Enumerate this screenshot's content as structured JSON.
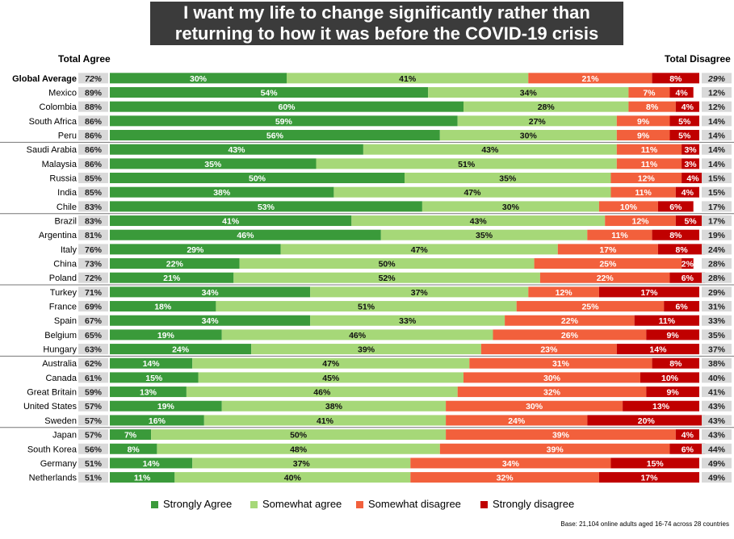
{
  "title_lines": [
    "I want my life to change significantly rather than",
    "returning to how it was before the COVID-19 crisis"
  ],
  "headers": {
    "left": "Total Agree",
    "right": "Total Disagree"
  },
  "base_note": "Base: 21,104  online adults aged 16-74 across 28 countries",
  "colors": {
    "strongly_agree": "#3a9a3a",
    "somewhat_agree": "#a6d878",
    "somewhat_disagree": "#f2603c",
    "strongly_disagree": "#c00000",
    "total_cell": "#d9d9d9",
    "separator": "#777777"
  },
  "chart_data": {
    "type": "bar",
    "orientation": "horizontal",
    "stacked": true,
    "title": "I want my life to change significantly rather than returning to how it was before the COVID-19 crisis",
    "categories": [
      "Global Average",
      "Mexico",
      "Colombia",
      "South Africa",
      "Peru",
      "Saudi Arabia",
      "Malaysia",
      "Russia",
      "India",
      "Chile",
      "Brazil",
      "Argentina",
      "Italy",
      "China",
      "Poland",
      "Turkey",
      "France",
      "Spain",
      "Belgium",
      "Hungary",
      "Australia",
      "Canada",
      "Great Britain",
      "United States",
      "Sweden",
      "Japan",
      "South Korea",
      "Germany",
      "Netherlands"
    ],
    "labels": [
      "30%",
      "41%",
      "21%",
      "8%",
      "54%",
      "34%",
      "7%",
      "4%",
      "60%",
      "28%",
      "8%",
      "4%",
      "59%",
      "27%",
      "9%",
      "5%",
      "56%",
      "30%",
      "9%",
      "5%",
      "43%",
      "43%",
      "11%",
      "3%",
      "35%",
      "51%",
      "11%",
      "3%",
      "50%",
      "35%",
      "12%",
      "4%",
      "38%",
      "47%",
      "11%",
      "4%",
      "53%",
      "30%",
      "10%",
      "6%",
      "41%",
      "43%",
      "12%",
      "5%",
      "46%",
      "35%",
      "11%",
      "8%",
      "29%",
      "47%",
      "17%",
      "8%",
      "22%",
      "50%",
      "25%",
      "2%",
      "21%",
      "52%",
      "22%",
      "6%",
      "34%",
      "37%",
      "12%",
      "17%",
      "18%",
      "51%",
      "25%",
      "6%",
      "34%",
      "33%",
      "22%",
      "11%",
      "19%",
      "46%",
      "26%",
      "9%",
      "24%",
      "39%",
      "23%",
      "14%",
      "14%",
      "47%",
      "31%",
      "8%",
      "15%",
      "45%",
      "30%",
      "10%",
      "13%",
      "46%",
      "32%",
      "9%",
      "19%",
      "38%",
      "30%",
      "13%",
      "16%",
      "41%",
      "24%",
      "20%",
      "7%",
      "50%",
      "39%",
      "4%",
      "8%",
      "48%",
      "39%",
      "6%",
      "14%",
      "37%",
      "34%",
      "15%",
      "11%",
      "40%",
      "32%",
      "17%"
    ],
    "series": [
      {
        "name": "Strongly Agree",
        "values": [
          30,
          54,
          60,
          59,
          56,
          43,
          35,
          50,
          38,
          53,
          41,
          46,
          29,
          22,
          21,
          34,
          18,
          34,
          19,
          24,
          14,
          15,
          13,
          19,
          16,
          7,
          8,
          14,
          11
        ]
      },
      {
        "name": "Somewhat agree",
        "values": [
          41,
          34,
          28,
          27,
          30,
          43,
          51,
          35,
          47,
          30,
          43,
          35,
          47,
          50,
          52,
          37,
          51,
          33,
          46,
          39,
          47,
          45,
          46,
          38,
          41,
          50,
          48,
          37,
          40
        ]
      },
      {
        "name": "Somewhat disagree",
        "values": [
          21,
          7,
          8,
          9,
          9,
          11,
          11,
          12,
          11,
          10,
          12,
          11,
          17,
          25,
          22,
          12,
          25,
          22,
          26,
          23,
          31,
          30,
          32,
          30,
          24,
          39,
          39,
          34,
          32
        ]
      },
      {
        "name": "Strongly disagree",
        "values": [
          8,
          4,
          4,
          5,
          5,
          3,
          3,
          4,
          4,
          6,
          5,
          8,
          8,
          2,
          6,
          17,
          6,
          11,
          9,
          14,
          8,
          10,
          9,
          13,
          20,
          4,
          6,
          15,
          17
        ]
      }
    ],
    "total_agree": [
      "72%",
      "89%",
      "88%",
      "86%",
      "86%",
      "86%",
      "86%",
      "85%",
      "85%",
      "83%",
      "83%",
      "81%",
      "76%",
      "73%",
      "72%",
      "71%",
      "69%",
      "67%",
      "65%",
      "63%",
      "62%",
      "61%",
      "59%",
      "57%",
      "57%",
      "57%",
      "56%",
      "51%",
      "51%"
    ],
    "total_disagree": [
      "29%",
      "12%",
      "12%",
      "14%",
      "14%",
      "14%",
      "14%",
      "15%",
      "15%",
      "17%",
      "17%",
      "19%",
      "24%",
      "28%",
      "28%",
      "29%",
      "31%",
      "33%",
      "35%",
      "37%",
      "38%",
      "40%",
      "41%",
      "43%",
      "43%",
      "43%",
      "44%",
      "49%",
      "49%"
    ],
    "xlim": [
      0,
      100
    ]
  }
}
